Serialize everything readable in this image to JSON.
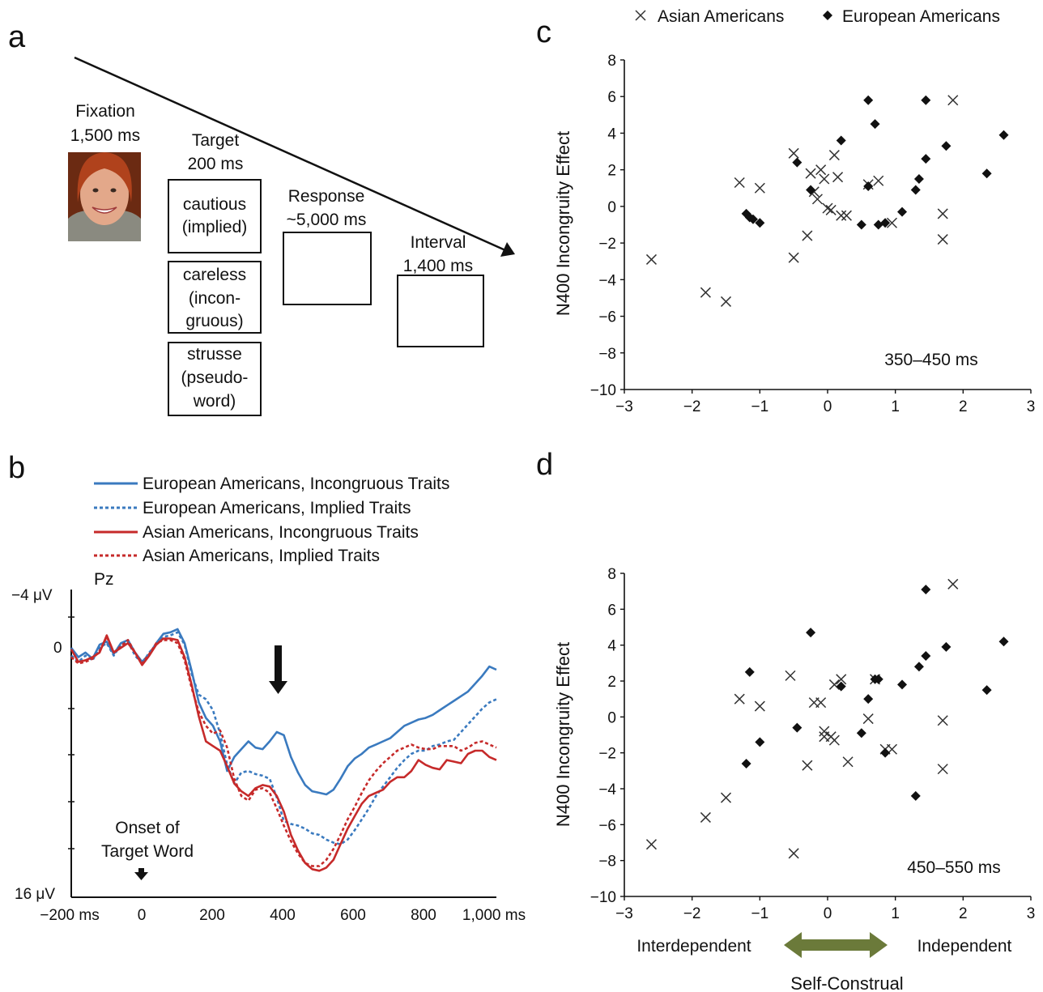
{
  "panel_a": {
    "letter": "a",
    "fixation": [
      "Fixation",
      "1,500 ms"
    ],
    "target": [
      "Target",
      "200 ms"
    ],
    "response": [
      "Response",
      "~5,000 ms"
    ],
    "interval": [
      "Interval",
      "1,400 ms"
    ],
    "words": [
      [
        "cautious",
        "(implied)"
      ],
      [
        "careless",
        "(incon-",
        "gruous)"
      ],
      [
        "strusse",
        "(pseudo-",
        "word)"
      ]
    ]
  },
  "panel_b": {
    "letter": "b",
    "electrode": "Pz",
    "onset_label": [
      "Onset of",
      "Target Word"
    ],
    "colors": {
      "blue": "#3a7abf",
      "red": "#c62a2a"
    },
    "chart_data": {
      "type": "line",
      "x_tick_labels": [
        "−200 ms",
        "0",
        "200",
        "400",
        "600",
        "800",
        "1,000 ms"
      ],
      "y_tick_labels": [
        "−4 μV",
        "0",
        "16 μV"
      ],
      "xlim": [
        -200,
        1000
      ],
      "ylim": [
        -4,
        16
      ],
      "series": [
        {
          "name": "European Americans, Incongruous Traits",
          "color": "#3a7abf",
          "dashed": false,
          "x": [
            -200,
            -180,
            -160,
            -140,
            -120,
            -100,
            -80,
            -60,
            -40,
            -20,
            0,
            20,
            40,
            60,
            80,
            100,
            120,
            140,
            160,
            180,
            200,
            220,
            240,
            260,
            280,
            300,
            320,
            340,
            360,
            380,
            400,
            420,
            440,
            460,
            480,
            500,
            520,
            540,
            560,
            580,
            600,
            620,
            640,
            660,
            680,
            700,
            720,
            740,
            760,
            780,
            800,
            820,
            840,
            860,
            880,
            900,
            920,
            940,
            960,
            980,
            1000
          ],
          "y": [
            0,
            0.6,
            0.3,
            0.7,
            -0.2,
            -0.4,
            0.4,
            -0.3,
            -0.5,
            0.3,
            0.9,
            0.4,
            -0.3,
            -0.9,
            -1.0,
            -1.2,
            -0.3,
            1.5,
            3.5,
            4.5,
            5.0,
            6.0,
            7.9,
            7.0,
            6.5,
            6.0,
            6.4,
            6.5,
            6.0,
            5.4,
            5.6,
            7.0,
            8.0,
            8.8,
            9.2,
            9.3,
            9.4,
            9.1,
            8.4,
            7.6,
            7.1,
            6.8,
            6.4,
            6.2,
            6.0,
            5.8,
            5.4,
            5.0,
            4.8,
            4.6,
            4.5,
            4.3,
            4.0,
            3.7,
            3.4,
            3.1,
            2.8,
            2.3,
            1.8,
            1.2,
            1.4
          ]
        },
        {
          "name": "European Americans, Implied Traits",
          "color": "#3a7abf",
          "dashed": true,
          "x": [
            -200,
            -180,
            -160,
            -140,
            -120,
            -100,
            -80,
            -60,
            -40,
            -20,
            0,
            20,
            40,
            60,
            80,
            100,
            120,
            140,
            160,
            180,
            200,
            220,
            240,
            260,
            280,
            300,
            320,
            340,
            360,
            380,
            400,
            420,
            440,
            460,
            480,
            500,
            520,
            540,
            560,
            580,
            600,
            620,
            640,
            660,
            680,
            700,
            720,
            740,
            760,
            780,
            800,
            820,
            840,
            860,
            880,
            900,
            920,
            940,
            960,
            980,
            1000
          ],
          "y": [
            0.5,
            0.9,
            0.5,
            0.8,
            0,
            -0.3,
            0.5,
            -0.2,
            -0.4,
            0.5,
            1.0,
            0.3,
            -0.2,
            -0.7,
            -0.8,
            -1.0,
            -0.2,
            1.7,
            3.0,
            3.3,
            4.0,
            5.5,
            7.5,
            8.7,
            8.0,
            7.9,
            8.1,
            8.2,
            8.4,
            9.6,
            11.1,
            11.3,
            11.4,
            11.6,
            11.9,
            12.0,
            12.3,
            12.5,
            12.6,
            12.3,
            11.7,
            11.0,
            10.3,
            9.5,
            8.9,
            8.3,
            7.7,
            7.2,
            6.8,
            6.6,
            6.6,
            6.3,
            6.2,
            6.0,
            5.9,
            5.4,
            4.9,
            4.4,
            3.9,
            3.5,
            3.3
          ]
        },
        {
          "name": "Asian Americans, Incongruous Traits",
          "color": "#c62a2a",
          "dashed": false,
          "x": [
            -200,
            -180,
            -160,
            -140,
            -120,
            -100,
            -80,
            -60,
            -40,
            -20,
            0,
            20,
            40,
            60,
            80,
            100,
            120,
            140,
            160,
            180,
            200,
            220,
            240,
            260,
            280,
            300,
            320,
            340,
            360,
            380,
            400,
            420,
            440,
            460,
            480,
            500,
            520,
            540,
            560,
            580,
            600,
            620,
            640,
            660,
            680,
            700,
            720,
            740,
            760,
            780,
            800,
            820,
            840,
            860,
            880,
            900,
            920,
            940,
            960,
            980,
            1000
          ],
          "y": [
            0.1,
            0.9,
            0.8,
            0.6,
            0.3,
            -0.8,
            0.3,
            0.0,
            -0.3,
            0.3,
            1.1,
            0.5,
            -0.2,
            -0.6,
            -0.6,
            -0.5,
            0.6,
            2.4,
            4.4,
            6.0,
            6.3,
            6.6,
            7.6,
            8.7,
            9.2,
            9.5,
            9.0,
            8.8,
            8.9,
            9.5,
            10.5,
            12.0,
            13.0,
            13.8,
            14.2,
            14.3,
            14.1,
            13.6,
            12.6,
            11.6,
            10.8,
            10.0,
            9.5,
            9.3,
            9.1,
            8.6,
            8.3,
            8.3,
            7.9,
            7.2,
            7.5,
            7.7,
            7.8,
            7.2,
            7.3,
            7.4,
            6.8,
            6.6,
            6.6,
            7.0,
            7.2
          ]
        },
        {
          "name": "Asian Americans, Implied Traits",
          "color": "#c62a2a",
          "dashed": true,
          "x": [
            -200,
            -180,
            -160,
            -140,
            -120,
            -100,
            -80,
            -60,
            -40,
            -20,
            0,
            20,
            40,
            60,
            80,
            100,
            120,
            140,
            160,
            180,
            200,
            220,
            240,
            260,
            280,
            300,
            320,
            340,
            360,
            380,
            400,
            420,
            440,
            460,
            480,
            500,
            520,
            540,
            560,
            580,
            600,
            620,
            640,
            660,
            680,
            700,
            720,
            740,
            760,
            780,
            800,
            820,
            840,
            860,
            880,
            900,
            920,
            940,
            960,
            980,
            1000
          ],
          "y": [
            0.6,
            1.0,
            0.9,
            0.7,
            0.2,
            -0.7,
            0.3,
            -0.1,
            -0.5,
            0.3,
            1.0,
            0.4,
            -0.3,
            -0.5,
            -0.5,
            -0.3,
            0.8,
            2.6,
            4.1,
            5.0,
            5.5,
            5.3,
            6.4,
            8.4,
            9.5,
            9.8,
            9.1,
            9.0,
            9.3,
            10.3,
            11.4,
            12.4,
            13.2,
            13.8,
            14.0,
            14.0,
            13.6,
            12.9,
            12.0,
            11.0,
            10.2,
            9.3,
            8.5,
            7.9,
            7.4,
            7.0,
            6.6,
            6.4,
            6.2,
            6.4,
            6.5,
            6.5,
            6.3,
            6.3,
            6.3,
            6.6,
            6.4,
            6.1,
            6.0,
            6.2,
            6.4
          ]
        }
      ]
    }
  },
  "panel_c": {
    "letter": "c",
    "legend": {
      "asian": "Asian Americans",
      "european": "European Americans"
    },
    "chart_data": {
      "type": "scatter",
      "ylabel": "N400 Incongruity Effect",
      "annotation": "350–450 ms",
      "xlim": [
        -3,
        3
      ],
      "ylim": [
        -10,
        8
      ],
      "x_ticks": [
        "−3",
        "−2",
        "−1",
        "0",
        "1",
        "2",
        "3"
      ],
      "y_ticks": [
        "8",
        "6",
        "4",
        "2",
        "0",
        "−2",
        "−4",
        "−6",
        "−8",
        "−10"
      ],
      "series": [
        {
          "name": "Asian Americans",
          "marker": "x",
          "points": [
            [
              -2.6,
              -2.9
            ],
            [
              -1.8,
              -4.7
            ],
            [
              -1.5,
              -5.2
            ],
            [
              -1.3,
              1.3
            ],
            [
              -1.0,
              1.0
            ],
            [
              -0.5,
              2.9
            ],
            [
              -0.5,
              -2.8
            ],
            [
              -0.3,
              -1.6
            ],
            [
              -0.25,
              1.8
            ],
            [
              -0.2,
              0.8
            ],
            [
              -0.15,
              0.4
            ],
            [
              -0.1,
              2.0
            ],
            [
              -0.05,
              1.5
            ],
            [
              0.0,
              -0.1
            ],
            [
              0.05,
              -0.2
            ],
            [
              0.1,
              2.8
            ],
            [
              0.15,
              1.6
            ],
            [
              0.2,
              -0.5
            ],
            [
              0.28,
              -0.5
            ],
            [
              0.6,
              1.2
            ],
            [
              0.75,
              1.4
            ],
            [
              0.95,
              -0.9
            ],
            [
              1.7,
              -0.4
            ],
            [
              1.7,
              -1.8
            ],
            [
              1.85,
              5.8
            ]
          ]
        },
        {
          "name": "European Americans",
          "marker": "diamond",
          "points": [
            [
              -1.2,
              -0.4
            ],
            [
              -1.15,
              -0.6
            ],
            [
              -1.1,
              -0.7
            ],
            [
              -1.0,
              -0.9
            ],
            [
              -0.45,
              2.4
            ],
            [
              -0.25,
              0.9
            ],
            [
              0.2,
              3.6
            ],
            [
              0.5,
              -1.0
            ],
            [
              0.6,
              1.1
            ],
            [
              0.6,
              5.8
            ],
            [
              0.7,
              4.5
            ],
            [
              0.75,
              -1.0
            ],
            [
              0.85,
              -0.9
            ],
            [
              1.1,
              -0.3
            ],
            [
              1.3,
              0.9
            ],
            [
              1.35,
              1.5
            ],
            [
              1.45,
              2.6
            ],
            [
              1.45,
              5.8
            ],
            [
              1.75,
              3.3
            ],
            [
              2.35,
              1.8
            ],
            [
              2.6,
              3.9
            ]
          ]
        }
      ]
    }
  },
  "panel_d": {
    "letter": "d",
    "interdependent": "Interdependent",
    "independent": "Independent",
    "xlabel": "Self-Construal",
    "arrow_color": "#6b7a3a",
    "chart_data": {
      "type": "scatter",
      "ylabel": "N400 Incongruity Effect",
      "annotation": "450–550 ms",
      "xlim": [
        -3,
        3
      ],
      "ylim": [
        -10,
        8
      ],
      "x_ticks": [
        "−3",
        "−2",
        "−1",
        "0",
        "1",
        "2",
        "3"
      ],
      "y_ticks": [
        "8",
        "6",
        "4",
        "2",
        "0",
        "−2",
        "−4",
        "−6",
        "−8",
        "−10"
      ],
      "series": [
        {
          "name": "Asian Americans",
          "marker": "x",
          "points": [
            [
              -2.6,
              -7.1
            ],
            [
              -1.8,
              -5.6
            ],
            [
              -1.5,
              -4.5
            ],
            [
              -1.3,
              1.0
            ],
            [
              -1.0,
              0.6
            ],
            [
              -0.55,
              2.3
            ],
            [
              -0.5,
              -7.6
            ],
            [
              -0.3,
              -2.7
            ],
            [
              -0.2,
              0.8
            ],
            [
              -0.1,
              0.8
            ],
            [
              -0.05,
              -1.1
            ],
            [
              -0.05,
              -0.8
            ],
            [
              0.05,
              -1.1
            ],
            [
              0.1,
              -1.3
            ],
            [
              0.1,
              1.8
            ],
            [
              0.2,
              2.1
            ],
            [
              0.3,
              -2.5
            ],
            [
              0.6,
              -0.1
            ],
            [
              0.7,
              2.1
            ],
            [
              0.85,
              -1.8
            ],
            [
              0.95,
              -1.8
            ],
            [
              1.7,
              -0.2
            ],
            [
              1.7,
              -2.9
            ],
            [
              1.85,
              7.4
            ]
          ]
        },
        {
          "name": "European Americans",
          "marker": "diamond",
          "points": [
            [
              -1.2,
              -2.6
            ],
            [
              -1.15,
              2.5
            ],
            [
              -1.0,
              -1.4
            ],
            [
              -0.45,
              -0.6
            ],
            [
              -0.25,
              4.7
            ],
            [
              0.2,
              1.7
            ],
            [
              0.5,
              -0.9
            ],
            [
              0.6,
              1.0
            ],
            [
              0.7,
              2.1
            ],
            [
              0.75,
              2.1
            ],
            [
              0.85,
              -2.0
            ],
            [
              1.1,
              1.8
            ],
            [
              1.3,
              -4.4
            ],
            [
              1.35,
              2.8
            ],
            [
              1.45,
              3.4
            ],
            [
              1.45,
              7.1
            ],
            [
              1.75,
              3.9
            ],
            [
              2.35,
              1.5
            ],
            [
              2.6,
              4.2
            ]
          ]
        }
      ]
    }
  }
}
